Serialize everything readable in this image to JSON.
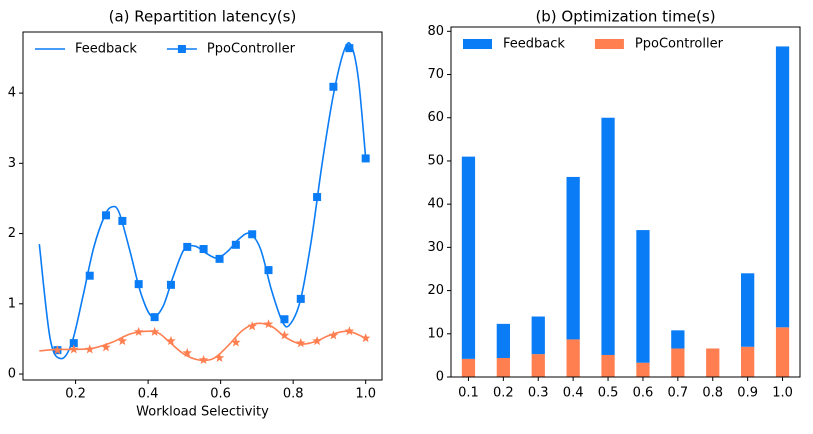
{
  "chart_data": [
    {
      "type": "line",
      "title": "(a) Repartition latency(s)",
      "x_label": "Workload Selectivity",
      "xlim": [
        0.055,
        1.045
      ],
      "xticks": [
        0.2,
        0.4,
        0.6,
        0.8,
        {
          "value": 1,
          "label": "1.0"
        }
      ],
      "ylim": [
        -0.085,
        4.87
      ],
      "yticks": [
        0,
        1,
        2,
        3,
        4
      ],
      "legend": "upper left",
      "series": [
        {
          "name": "Feedback",
          "color": "#0a7cf5",
          "style": "line",
          "x": [
            0.1,
            0.13,
            0.16,
            0.19,
            0.22,
            0.25,
            0.28,
            0.3,
            0.32,
            0.35,
            0.38,
            0.41,
            0.44,
            0.47,
            0.5,
            0.53,
            0.56,
            0.59,
            0.62,
            0.65,
            0.68,
            0.71,
            0.74,
            0.77,
            0.79,
            0.82,
            0.85,
            0.88,
            0.91,
            0.94,
            0.96,
            0.98,
            1.0
          ],
          "values": [
            1.85,
            0.5,
            0.22,
            0.45,
            1.1,
            1.8,
            2.25,
            2.38,
            2.3,
            1.75,
            1.15,
            0.82,
            0.95,
            1.4,
            1.78,
            1.82,
            1.72,
            1.65,
            1.75,
            1.92,
            2.0,
            1.78,
            1.2,
            0.75,
            0.7,
            1.05,
            1.9,
            3.0,
            3.95,
            4.6,
            4.68,
            4.2,
            3.07
          ]
        },
        {
          "name": "PpoController",
          "color": "#0a7cf5",
          "style": "markers",
          "marker": "square",
          "x": [
            0.15,
            0.195,
            0.239,
            0.284,
            0.329,
            0.374,
            0.418,
            0.463,
            0.508,
            0.553,
            0.597,
            0.642,
            0.687,
            0.732,
            0.776,
            0.821,
            0.866,
            0.911,
            0.955,
            1.0
          ],
          "values": [
            0.34,
            0.44,
            1.4,
            2.26,
            2.18,
            1.28,
            0.81,
            1.27,
            1.81,
            1.78,
            1.64,
            1.84,
            1.99,
            1.48,
            0.78,
            1.07,
            2.52,
            4.09,
            4.64,
            3.07
          ]
        },
        {
          "color": "#ff7f50",
          "style": "line",
          "x": [
            0.1,
            0.15,
            0.2,
            0.25,
            0.3,
            0.35,
            0.4,
            0.43,
            0.46,
            0.5,
            0.54,
            0.58,
            0.62,
            0.66,
            0.7,
            0.74,
            0.78,
            0.82,
            0.86,
            0.9,
            0.95,
            1.0
          ],
          "values": [
            0.33,
            0.35,
            0.35,
            0.37,
            0.45,
            0.57,
            0.61,
            0.58,
            0.45,
            0.28,
            0.2,
            0.22,
            0.4,
            0.62,
            0.72,
            0.68,
            0.52,
            0.43,
            0.46,
            0.55,
            0.61,
            0.51
          ]
        },
        {
          "color": "#ff7f50",
          "style": "markers",
          "marker": "star",
          "x": [
            0.15,
            0.195,
            0.239,
            0.284,
            0.329,
            0.374,
            0.418,
            0.463,
            0.508,
            0.553,
            0.597,
            0.642,
            0.687,
            0.732,
            0.776,
            0.821,
            0.866,
            0.911,
            0.955,
            1.0
          ],
          "values": [
            0.34,
            0.35,
            0.35,
            0.38,
            0.47,
            0.6,
            0.6,
            0.47,
            0.3,
            0.2,
            0.23,
            0.45,
            0.68,
            0.71,
            0.55,
            0.44,
            0.47,
            0.55,
            0.61,
            0.51
          ]
        }
      ]
    },
    {
      "type": "bar",
      "stacked": true,
      "title": "(b) Optimization time(s)",
      "categories": [
        "0.1",
        "0.2",
        "0.3",
        "0.4",
        "0.5",
        "0.6",
        "0.7",
        "0.8",
        "0.9",
        "1.0"
      ],
      "ylim": [
        0,
        81
      ],
      "yticks": [
        0,
        10,
        20,
        30,
        40,
        50,
        60,
        70,
        80
      ],
      "legend": "upper left",
      "series": [
        {
          "name": "Feedback",
          "color": "#0a7cf5",
          "values": [
            46.8,
            7.9,
            8.7,
            37.6,
            54.9,
            30.7,
            4.2,
            0,
            17,
            65
          ]
        },
        {
          "name": "PpoController",
          "color": "#ff7f50",
          "values": [
            4.2,
            4.4,
            5.3,
            8.7,
            5.1,
            3.3,
            6.6,
            6.6,
            7,
            11.5
          ]
        }
      ]
    }
  ]
}
